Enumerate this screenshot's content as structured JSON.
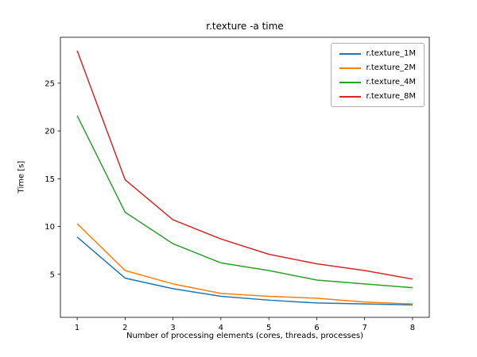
{
  "chart_data": {
    "type": "line",
    "title": "r.texture -a time",
    "xlabel": "Number of processing elements (cores, threads, processes)",
    "ylabel": "Time [s]",
    "grid": false,
    "legend_position": "upper right",
    "x": [
      1,
      2,
      3,
      4,
      5,
      6,
      7,
      8
    ],
    "xticks": [
      1,
      2,
      3,
      4,
      5,
      6,
      7,
      8
    ],
    "yticks": [
      5,
      10,
      15,
      20,
      25
    ],
    "xlim": [
      0.65,
      8.35
    ],
    "ylim": [
      0.5,
      29.8
    ],
    "series": [
      {
        "name": "r.texture_1M",
        "color": "#1f77b4",
        "values": [
          8.9,
          4.6,
          3.5,
          2.7,
          2.3,
          2.0,
          1.9,
          1.8
        ]
      },
      {
        "name": "r.texture_2M",
        "color": "#ff7f0e",
        "values": [
          10.3,
          5.4,
          4.0,
          3.0,
          2.7,
          2.5,
          2.1,
          1.9
        ]
      },
      {
        "name": "r.texture_4M",
        "color": "#2ca02c",
        "values": [
          21.6,
          11.5,
          8.2,
          6.2,
          5.4,
          4.4,
          4.0,
          3.6
        ]
      },
      {
        "name": "r.texture_8M",
        "color": "#d62728",
        "values": [
          28.4,
          14.9,
          10.7,
          8.7,
          7.1,
          6.1,
          5.4,
          4.5
        ]
      }
    ]
  }
}
